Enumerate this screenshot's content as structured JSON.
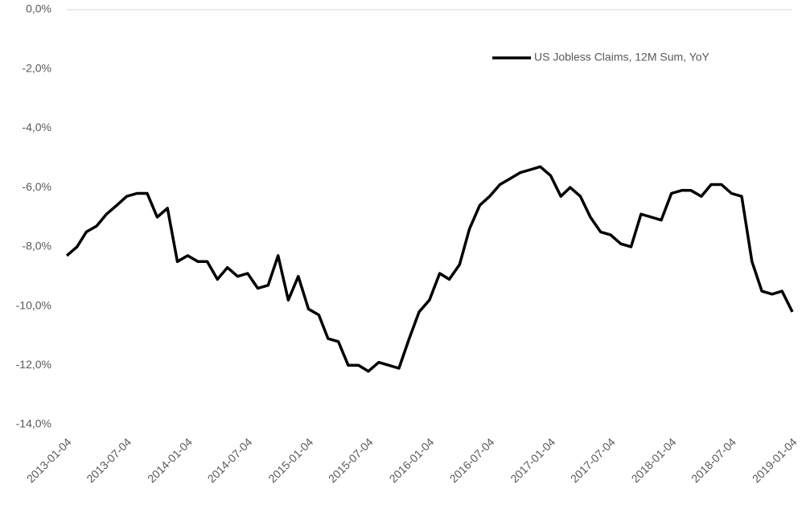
{
  "chart_data": {
    "type": "line",
    "x": [
      "2013-01-04",
      "2013-02-04",
      "2013-03-04",
      "2013-04-04",
      "2013-05-04",
      "2013-06-04",
      "2013-07-04",
      "2013-08-04",
      "2013-09-04",
      "2013-10-04",
      "2013-11-04",
      "2013-12-04",
      "2014-01-04",
      "2014-02-04",
      "2014-03-04",
      "2014-04-04",
      "2014-05-04",
      "2014-06-04",
      "2014-07-04",
      "2014-08-04",
      "2014-09-04",
      "2014-10-04",
      "2014-11-04",
      "2014-12-04",
      "2015-01-04",
      "2015-02-04",
      "2015-03-04",
      "2015-04-04",
      "2015-05-04",
      "2015-06-04",
      "2015-07-04",
      "2015-08-04",
      "2015-09-04",
      "2015-10-04",
      "2015-11-04",
      "2015-12-04",
      "2016-01-04",
      "2016-02-04",
      "2016-03-04",
      "2016-04-04",
      "2016-05-04",
      "2016-06-04",
      "2016-07-04",
      "2016-08-04",
      "2016-09-04",
      "2016-10-04",
      "2016-11-04",
      "2016-12-04",
      "2017-01-04",
      "2017-02-04",
      "2017-03-04",
      "2017-04-04",
      "2017-05-04",
      "2017-06-04",
      "2017-07-04",
      "2017-08-04",
      "2017-09-04",
      "2017-10-04",
      "2017-11-04",
      "2017-12-04",
      "2018-01-04",
      "2018-02-04",
      "2018-03-04",
      "2018-04-04",
      "2018-05-04",
      "2018-06-04",
      "2018-07-04",
      "2018-08-04",
      "2018-09-04",
      "2018-10-04",
      "2018-11-04",
      "2018-12-04",
      "2019-01-04"
    ],
    "series": [
      {
        "name": "US Jobless Claims, 12M Sum, YoY",
        "color": "#000000",
        "values": [
          -8.3,
          -8.0,
          -7.5,
          -7.3,
          -6.9,
          -6.6,
          -6.3,
          -6.2,
          -6.2,
          -7.0,
          -6.7,
          -8.5,
          -8.3,
          -8.5,
          -8.5,
          -9.1,
          -8.7,
          -9.0,
          -8.9,
          -9.4,
          -9.3,
          -8.3,
          -9.8,
          -9.0,
          -10.1,
          -10.3,
          -11.1,
          -11.2,
          -12.0,
          -12.0,
          -12.2,
          -11.9,
          -12.0,
          -12.1,
          -11.1,
          -10.2,
          -9.8,
          -8.9,
          -9.1,
          -8.6,
          -7.4,
          -6.6,
          -6.3,
          -5.9,
          -5.7,
          -5.5,
          -5.4,
          -5.3,
          -5.6,
          -6.3,
          -6.0,
          -6.3,
          -7.0,
          -7.5,
          -7.6,
          -7.9,
          -8.0,
          -6.9,
          -7.0,
          -7.1,
          -6.2,
          -6.1,
          -6.1,
          -6.3,
          -5.9,
          -5.9,
          -6.2,
          -6.3,
          -8.5,
          -9.5,
          -9.6,
          -9.5,
          -10.2
        ]
      }
    ],
    "xlim": [
      "2013-01-04",
      "2019-01-04"
    ],
    "xticks": [
      "2013-01-04",
      "2013-07-04",
      "2014-01-04",
      "2014-07-04",
      "2015-01-04",
      "2015-07-04",
      "2016-01-04",
      "2016-07-04",
      "2017-01-04",
      "2017-07-04",
      "2018-01-04",
      "2018-07-04",
      "2019-01-04"
    ],
    "ylim": [
      -14,
      0
    ],
    "yticks": [
      {
        "value": 0,
        "label": "0,0%"
      },
      {
        "value": -2,
        "label": "-2,0%"
      },
      {
        "value": -4,
        "label": "-4,0%"
      },
      {
        "value": -6,
        "label": "-6,0%"
      },
      {
        "value": -8,
        "label": "-8,0%"
      },
      {
        "value": -10,
        "label": "-10,0%"
      },
      {
        "value": -12,
        "label": "-12,0%"
      },
      {
        "value": -14,
        "label": "-14,0%"
      }
    ],
    "grid": false,
    "legend": "upper right"
  }
}
